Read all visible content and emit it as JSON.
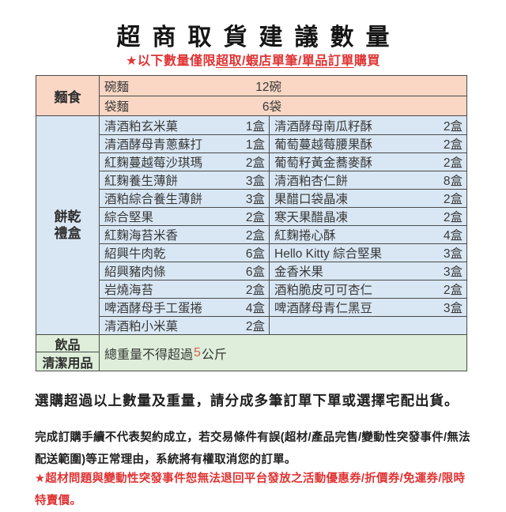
{
  "title": "超商取貨建議數量",
  "subtitle": {
    "prefix": "★以下數量僅限",
    "underlined": "超取/蝦店單筆/單品訂單",
    "suffix": "購買"
  },
  "colors": {
    "noodle_bg": "#f9d7c4",
    "cookie_bg": "#d9e7f4",
    "bottom_bg": "#deeeda",
    "accent_red": "#e03333",
    "weight_red": "#d9634e",
    "border": "#4a4a4a"
  },
  "table": {
    "noodles": {
      "label": "麵食",
      "rows": [
        {
          "name": "碗麵",
          "qty": "12碗"
        },
        {
          "name": "袋麵",
          "qty": "6袋"
        }
      ]
    },
    "cookies": {
      "label": "餅乾禮盒",
      "rows": [
        {
          "left": {
            "name": "清酒粕玄米菓",
            "qty": "1盒"
          },
          "right": {
            "name": "清酒酵母南瓜籽酥",
            "qty": "2盒"
          }
        },
        {
          "left": {
            "name": "清酒酵母青蔥蘇打",
            "qty": "1盒"
          },
          "right": {
            "name": "葡萄蔓越莓腰果酥",
            "qty": "2盒"
          }
        },
        {
          "left": {
            "name": "紅麴蔓越莓沙琪瑪",
            "qty": "2盒"
          },
          "right": {
            "name": "葡萄籽黃金蕎麥酥",
            "qty": "2盒"
          }
        },
        {
          "left": {
            "name": "紅麴養生薄餅",
            "qty": "3盒"
          },
          "right": {
            "name": "清酒粕杏仁餅",
            "qty": "8盒"
          }
        },
        {
          "left": {
            "name": "酒粕綜合養生薄餅",
            "qty": "3盒"
          },
          "right": {
            "name": "果醋口袋晶凍",
            "qty": "2盒"
          }
        },
        {
          "left": {
            "name": "綜合堅果",
            "qty": "2盒"
          },
          "right": {
            "name": "寒天果醋晶凍",
            "qty": "2盒"
          }
        },
        {
          "left": {
            "name": "紅麴海苔米香",
            "qty": "2盒"
          },
          "right": {
            "name": "紅麴捲心酥",
            "qty": "4盒"
          }
        },
        {
          "left": {
            "name": "紹興牛肉乾",
            "qty": "6盒"
          },
          "right": {
            "name": "Hello Kitty 綜合堅果",
            "qty": "3盒"
          }
        },
        {
          "left": {
            "name": "紹興豬肉條",
            "qty": "6盒"
          },
          "right": {
            "name": "金香米果",
            "qty": "3盒"
          }
        },
        {
          "left": {
            "name": "岩燒海苔",
            "qty": "2盒"
          },
          "right": {
            "name": "酒粕脆皮可可杏仁",
            "qty": "2盒"
          }
        },
        {
          "left": {
            "name": "啤酒酵母手工蛋捲",
            "qty": "4盒"
          },
          "right": {
            "name": "啤酒酵母青仁黑豆",
            "qty": "3盒"
          }
        },
        {
          "left": {
            "name": "清酒粕小米菓",
            "qty": "2盒"
          },
          "right": {
            "name": "",
            "qty": ""
          }
        }
      ]
    },
    "bottom": {
      "label_1": "飲品",
      "label_2": "清潔用品",
      "note_prefix": "總重量不得超過",
      "note_weight": "5",
      "note_suffix": "公斤"
    }
  },
  "footer": {
    "line1": "選購超過以上數量及重量，請分成多筆訂單下單或選擇宅配出貨。",
    "line2": "完成訂購手續不代表契約成立，若交易條件有誤(超材/產品完售/變動性突發事件/無法配送範圍)等正常理由，系統將有權取消您的訂單。",
    "line3": "★超材問題與變動性突發事件恕無法退回平台發放之活動優惠券/折價券/免運券/限時特賣價。"
  }
}
